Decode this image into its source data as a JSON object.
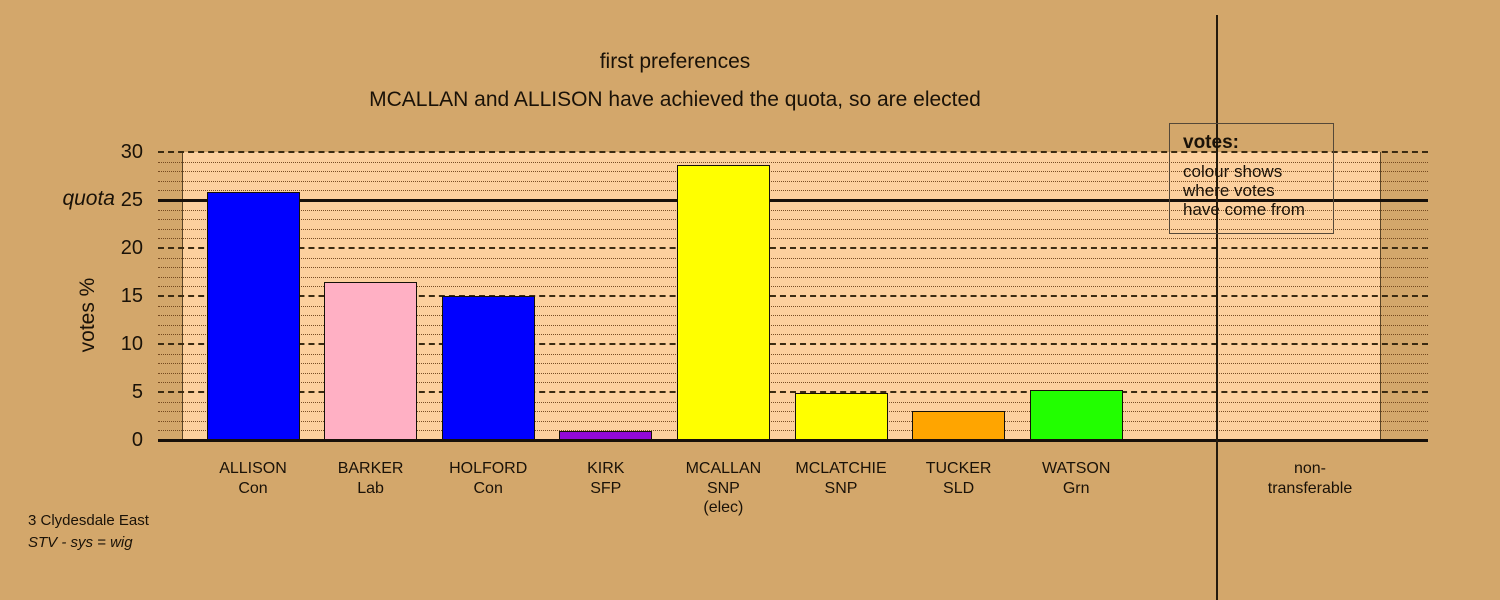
{
  "colors": {
    "page_bg": "#D3A76B",
    "plot_bg": "#FCD09E",
    "gridline_minor": "#6B4018",
    "gridline_major": "#3B2B12",
    "quota_line": "#17100A",
    "text": "#1A1208"
  },
  "titles": {
    "line1": "first preferences",
    "line2": "MCALLAN and ALLISON have achieved the quota, so are elected"
  },
  "legend": {
    "heading": "votes:",
    "lines": [
      "colour shows",
      "where votes",
      "have come from"
    ]
  },
  "footer": {
    "line1": "3 Clydesdale East",
    "line2": "STV - sys = wig"
  },
  "chart_data": {
    "type": "bar",
    "title": "first preferences",
    "subtitle": "MCALLAN and ALLISON have achieved the quota, so are elected",
    "ylabel": "votes %",
    "ylim": [
      0,
      30
    ],
    "yticks": [
      0,
      5,
      10,
      15,
      20,
      25,
      30
    ],
    "grid": "dotted every 1, dashed every 5",
    "quota": {
      "label": "quota",
      "value": 25
    },
    "categories": [
      "ALLISON",
      "BARKER",
      "HOLFORD",
      "KIRK",
      "MCALLAN",
      "MCLATCHIE",
      "TUCKER",
      "WATSON",
      "non-transferable"
    ],
    "category_sublabels": [
      "Con",
      "Lab",
      "Con",
      "SFP",
      "SNP",
      "SNP",
      "SLD",
      "Grn",
      ""
    ],
    "category_notes": [
      "",
      "",
      "",
      "",
      "(elec)",
      "",
      "",
      "",
      ""
    ],
    "values": [
      25.8,
      16.5,
      15.0,
      0.9,
      28.6,
      4.9,
      3.0,
      5.2,
      0
    ],
    "bar_colors": [
      "#0000FF",
      "#FFB0C4",
      "#0000FF",
      "#9208D8",
      "#FFFF00",
      "#FFFF00",
      "#FFA500",
      "#22FF00",
      null
    ],
    "x_labels": [
      {
        "lines": [
          "ALLISON",
          "Con"
        ]
      },
      {
        "lines": [
          "BARKER",
          "Lab"
        ]
      },
      {
        "lines": [
          "HOLFORD",
          "Con"
        ]
      },
      {
        "lines": [
          "KIRK",
          "SFP"
        ]
      },
      {
        "lines": [
          "MCALLAN",
          "SNP",
          "(elec)"
        ]
      },
      {
        "lines": [
          "MCLATCHIE",
          "SNP"
        ]
      },
      {
        "lines": [
          "TUCKER",
          "SLD"
        ]
      },
      {
        "lines": [
          "WATSON",
          "Grn"
        ]
      },
      {
        "lines": [
          "non-",
          "transferable"
        ]
      }
    ]
  }
}
